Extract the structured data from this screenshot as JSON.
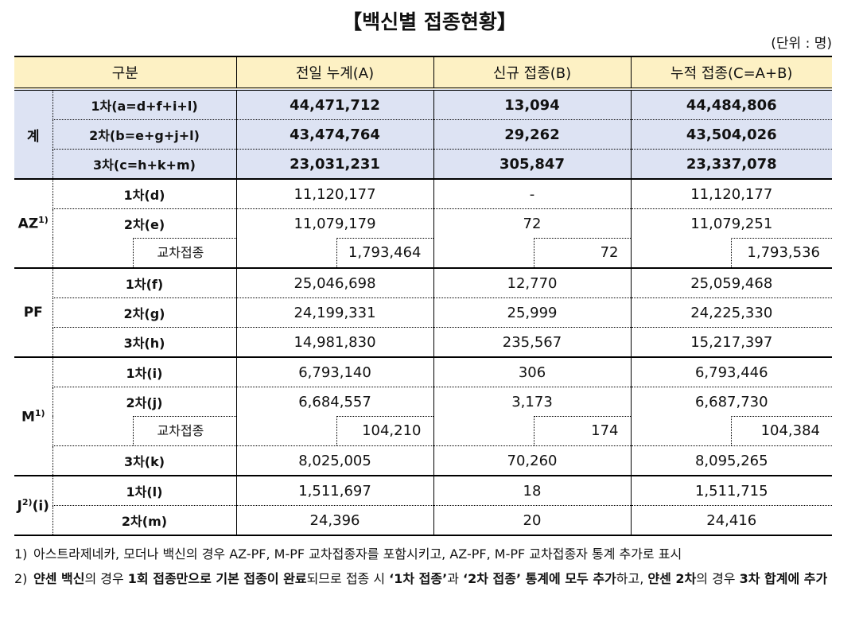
{
  "title": "【백신별 접종현황】",
  "unit": "(단위 : 명)",
  "table": {
    "header": [
      "구분",
      "전일 누계(A)",
      "신규 접종(B)",
      "누적 접종(C=A+B)"
    ],
    "groups": [
      {
        "label": "계",
        "total": true,
        "rows": [
          {
            "label": "1차(a=d+f+i+l)",
            "values": [
              "44,471,712",
              "13,094",
              "44,484,806"
            ]
          },
          {
            "label": "2차(b=e+g+j+l)",
            "values": [
              "43,474,764",
              "29,262",
              "43,504,026"
            ]
          },
          {
            "label": "3차(c=h+k+m)",
            "values": [
              "23,031,231",
              "305,847",
              "23,337,078"
            ]
          }
        ]
      },
      {
        "label": "AZ",
        "sup": "1)",
        "rows": [
          {
            "label": "1차(d)",
            "values": [
              "11,120,177",
              "-",
              "11,120,177"
            ]
          },
          {
            "label": "2차(e)",
            "values": [
              "11,079,179",
              "72",
              "11,079,251"
            ]
          },
          {
            "label": "교차접종",
            "sub": true,
            "values": [
              "1,793,464",
              "72",
              "1,793,536"
            ]
          }
        ]
      },
      {
        "label": "PF",
        "rows": [
          {
            "label": "1차(f)",
            "values": [
              "25,046,698",
              "12,770",
              "25,059,468"
            ]
          },
          {
            "label": "2차(g)",
            "values": [
              "24,199,331",
              "25,999",
              "24,225,330"
            ]
          },
          {
            "label": "3차(h)",
            "values": [
              "14,981,830",
              "235,567",
              "15,217,397"
            ]
          }
        ]
      },
      {
        "label": "M",
        "sup": "1)",
        "rows": [
          {
            "label": "1차(i)",
            "values": [
              "6,793,140",
              "306",
              "6,793,446"
            ]
          },
          {
            "label": "2차(j)",
            "values": [
              "6,684,557",
              "3,173",
              "6,687,730"
            ]
          },
          {
            "label": "교차접종",
            "sub": true,
            "values": [
              "104,210",
              "174",
              "104,384"
            ]
          },
          {
            "label": "3차(k)",
            "values": [
              "8,025,005",
              "70,260",
              "8,095,265"
            ]
          }
        ]
      },
      {
        "label": "J",
        "sup": "2)",
        "suffix": "(i)",
        "rows": [
          {
            "label": "1차(l)",
            "values": [
              "1,511,697",
              "18",
              "1,511,715"
            ]
          },
          {
            "label": "2차(m)",
            "values": [
              "24,396",
              "20",
              "24,416"
            ]
          }
        ]
      }
    ]
  },
  "footnotes": [
    {
      "marker": "1)",
      "segments": [
        {
          "text": "아스트라제네카, 모더나 백신의 경우 AZ-PF, M-PF 교차접종자를 포함시키고, AZ-PF, M-PF 교차접종자 통계 추가로 표시",
          "bold": false
        }
      ]
    },
    {
      "marker": "2)",
      "segments": [
        {
          "text": "얀센 백신",
          "bold": true
        },
        {
          "text": "의 경우 ",
          "bold": false
        },
        {
          "text": "1회 접종만으로 기본 접종이 완료",
          "bold": true
        },
        {
          "text": "되므로 접종 시 ",
          "bold": false
        },
        {
          "text": "‘1차 접종’",
          "bold": true
        },
        {
          "text": "과 ",
          "bold": false
        },
        {
          "text": "‘2차 접종’ 통계에 모두 추가",
          "bold": true
        },
        {
          "text": "하고, ",
          "bold": false
        },
        {
          "text": "얀센 2차",
          "bold": true
        },
        {
          "text": "의 경우 ",
          "bold": false
        },
        {
          "text": "3차 합계에 추가",
          "bold": true
        }
      ]
    }
  ]
}
